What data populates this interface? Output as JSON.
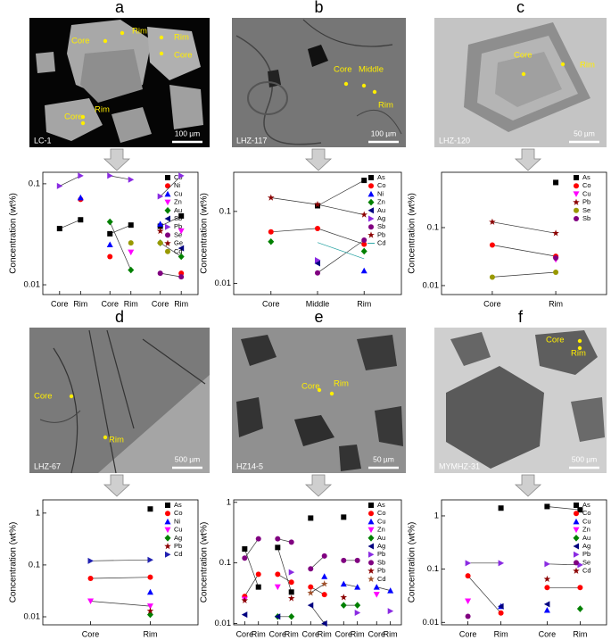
{
  "panels": [
    {
      "letter": "a",
      "sample": "LC-1",
      "scale": "100 µm",
      "labels": [
        "Core",
        "Rim",
        "Rim",
        "Core",
        "Core",
        "Rim"
      ]
    },
    {
      "letter": "b",
      "sample": "LHZ-117",
      "scale": "100 µm",
      "labels": [
        "Core",
        "Middle",
        "Rim"
      ]
    },
    {
      "letter": "c",
      "sample": "LHZ-120",
      "scale": "50 µm",
      "labels": [
        "Core",
        "Rim"
      ]
    },
    {
      "letter": "d",
      "sample": "LHZ-67",
      "scale": "500 µm",
      "labels": [
        "Core",
        "Rim"
      ]
    },
    {
      "letter": "e",
      "sample": "HZ14-5",
      "scale": "50 µm",
      "labels": [
        "Core",
        "Rim"
      ]
    },
    {
      "letter": "f",
      "sample": "MYMHZ-31",
      "scale": "500 µm",
      "labels": [
        "Core",
        "Rim"
      ]
    }
  ],
  "chart_data": [
    {
      "type": "line",
      "ylabel": "Concentration (wt%)",
      "log": true,
      "ylim": [
        0.008,
        0.13
      ],
      "yticks": [
        0.01,
        0.1
      ],
      "categories": [
        "Core",
        "Rim",
        null,
        "Core",
        "Rim",
        null,
        "Core",
        "Rim"
      ],
      "series": [
        {
          "name": "Co",
          "color": "#000000",
          "marker": "square",
          "values": [
            0.036,
            0.044,
            null,
            0.032,
            0.039,
            null,
            0.038,
            0.048
          ]
        },
        {
          "name": "Ni",
          "color": "#ff0000",
          "marker": "circle",
          "values": [
            null,
            0.07,
            null,
            0.019,
            null,
            null,
            null,
            0.013
          ]
        },
        {
          "name": "Cu",
          "color": "#0000ff",
          "marker": "triangle",
          "values": [
            null,
            0.073,
            null,
            0.025,
            null,
            null,
            0.04,
            null
          ]
        },
        {
          "name": "Zn",
          "color": "#ff00ff",
          "marker": "triangle-down",
          "values": [
            null,
            null,
            null,
            null,
            0.021,
            null,
            null,
            0.034
          ]
        },
        {
          "name": "Au",
          "color": "#008000",
          "marker": "diamond",
          "values": [
            null,
            null,
            null,
            0.042,
            0.014,
            null,
            0.026,
            0.019
          ]
        },
        {
          "name": "Sb",
          "color": "#000080",
          "marker": "triangle-left",
          "values": [
            null,
            null,
            null,
            null,
            null,
            null,
            null,
            0.023
          ]
        },
        {
          "name": "Pb",
          "color": "#8a2be2",
          "marker": "triangle-right",
          "values": [
            0.095,
            0.12,
            null,
            0.12,
            0.11,
            null,
            0.075,
            0.12
          ]
        },
        {
          "name": "Se",
          "color": "#800080",
          "marker": "circle",
          "values": [
            null,
            null,
            null,
            null,
            null,
            null,
            0.013,
            0.012
          ]
        },
        {
          "name": "Ge",
          "color": "#8b0000",
          "marker": "star",
          "values": [
            null,
            null,
            null,
            null,
            null,
            null,
            0.034,
            null
          ]
        },
        {
          "name": "Cd",
          "color": "#999900",
          "marker": "circle",
          "values": [
            null,
            null,
            null,
            null,
            0.026,
            null,
            0.026,
            null
          ]
        }
      ]
    },
    {
      "type": "line",
      "ylabel": "Concentration (wt%)",
      "log": true,
      "ylim": [
        0.007,
        0.35
      ],
      "yticks": [
        0.01,
        0.1
      ],
      "categories": [
        "Core",
        "Middle",
        "Rim"
      ],
      "series": [
        {
          "name": "As",
          "color": "#000000",
          "marker": "square",
          "values": [
            null,
            0.12,
            0.27
          ]
        },
        {
          "name": "Co",
          "color": "#ff0000",
          "marker": "circle",
          "values": [
            0.052,
            0.058,
            0.035
          ]
        },
        {
          "name": "Ni",
          "color": "#0000ff",
          "marker": "triangle",
          "values": [
            null,
            null,
            0.015
          ]
        },
        {
          "name": "Zn",
          "color": "#008000",
          "marker": "diamond",
          "values": [
            0.038,
            null,
            0.028
          ]
        },
        {
          "name": "Au",
          "color": "#000080",
          "marker": "triangle-left",
          "values": [
            null,
            0.019,
            null
          ]
        },
        {
          "name": "Ag",
          "color": "#8a2be2",
          "marker": "triangle-right",
          "values": [
            null,
            0.021,
            null
          ]
        },
        {
          "name": "Sb",
          "color": "#800080",
          "marker": "circle",
          "values": [
            null,
            0.014,
            0.04
          ]
        },
        {
          "name": "Pb",
          "color": "#8b0000",
          "marker": "star",
          "values": [
            0.155,
            0.125,
            0.09
          ]
        },
        {
          "name": "Cd",
          "color": "#20a0a0",
          "marker": "none",
          "values": [
            null,
            0.037,
            0.022
          ]
        }
      ]
    },
    {
      "type": "line",
      "ylabel": "Concentration (wt%)",
      "log": true,
      "ylim": [
        0.007,
        0.9
      ],
      "yticks": [
        0.01,
        0.1
      ],
      "categories": [
        "Core",
        "Rim"
      ],
      "series": [
        {
          "name": "As",
          "color": "#000000",
          "marker": "square",
          "values": [
            null,
            0.6
          ]
        },
        {
          "name": "Co",
          "color": "#ff0000",
          "marker": "circle",
          "values": [
            0.05,
            0.032
          ]
        },
        {
          "name": "Cu",
          "color": "#ff00ff",
          "marker": "triangle-down",
          "values": [
            null,
            0.028
          ]
        },
        {
          "name": "Pb",
          "color": "#8b0000",
          "marker": "star",
          "values": [
            0.125,
            0.08
          ]
        },
        {
          "name": "Se",
          "color": "#999900",
          "marker": "circle",
          "values": [
            0.014,
            0.017
          ]
        },
        {
          "name": "Sb",
          "color": "#800080",
          "marker": "circle",
          "values": [
            null,
            0.03
          ]
        }
      ]
    },
    {
      "type": "line",
      "ylabel": "Concentration (wt%)",
      "log": true,
      "ylim": [
        0.007,
        1.8
      ],
      "yticks": [
        0.01,
        0.1,
        1
      ],
      "categories": [
        "Core",
        "Rim"
      ],
      "series": [
        {
          "name": "As",
          "color": "#000000",
          "marker": "square",
          "values": [
            null,
            1.2
          ]
        },
        {
          "name": "Co",
          "color": "#ff0000",
          "marker": "circle",
          "values": [
            0.055,
            0.058
          ]
        },
        {
          "name": "Ni",
          "color": "#0000ff",
          "marker": "triangle",
          "values": [
            null,
            0.03
          ]
        },
        {
          "name": "Cu",
          "color": "#ff00ff",
          "marker": "triangle-down",
          "values": [
            0.02,
            0.016
          ]
        },
        {
          "name": "Ag",
          "color": "#008000",
          "marker": "diamond",
          "values": [
            null,
            0.011
          ]
        },
        {
          "name": "Pb",
          "color": "#8b0000",
          "marker": "star",
          "values": [
            null,
            0.013
          ]
        },
        {
          "name": "Cd",
          "color": "#2020b0",
          "marker": "triangle-right",
          "values": [
            0.12,
            0.125
          ]
        }
      ]
    },
    {
      "type": "line",
      "ylabel": "Concentration (wt%)",
      "log": true,
      "ylim": [
        0.0095,
        1.1
      ],
      "yticks": [
        0.01,
        0.1,
        1
      ],
      "categories": [
        "Core",
        "Rim",
        null,
        "Core",
        "Rim",
        null,
        "Core",
        "Rim",
        null,
        "Core",
        "Rim",
        null,
        "Core",
        "Rim"
      ],
      "series": [
        {
          "name": "As",
          "color": "#000000",
          "marker": "square",
          "values": [
            0.17,
            0.04,
            null,
            0.18,
            0.033,
            null,
            0.55,
            null,
            null,
            0.57,
            null,
            null,
            null,
            null
          ]
        },
        {
          "name": "Co",
          "color": "#ff0000",
          "marker": "circle",
          "values": [
            0.028,
            0.065,
            null,
            0.065,
            0.048,
            null,
            0.04,
            0.03,
            null,
            null,
            null,
            null,
            null,
            null
          ]
        },
        {
          "name": "Cu",
          "color": "#0000ff",
          "marker": "triangle",
          "values": [
            null,
            null,
            null,
            null,
            null,
            null,
            null,
            0.06,
            null,
            0.045,
            0.04,
            null,
            0.04,
            0.035
          ]
        },
        {
          "name": "Zn",
          "color": "#ff00ff",
          "marker": "triangle-down",
          "values": [
            0.025,
            null,
            null,
            0.04,
            null,
            null,
            null,
            null,
            null,
            null,
            null,
            null,
            0.03,
            null
          ]
        },
        {
          "name": "Au",
          "color": "#008000",
          "marker": "diamond",
          "values": [
            null,
            null,
            null,
            0.013,
            0.013,
            null,
            null,
            null,
            null,
            0.02,
            0.02,
            null,
            null,
            null
          ]
        },
        {
          "name": "Ag",
          "color": "#000080",
          "marker": "triangle-left",
          "values": [
            0.014,
            null,
            null,
            0.013,
            null,
            null,
            0.02,
            0.01,
            null,
            null,
            null,
            null,
            null,
            null
          ]
        },
        {
          "name": "Pb",
          "color": "#8a2be2",
          "marker": "triangle-right",
          "values": [
            null,
            null,
            null,
            null,
            0.07,
            null,
            null,
            null,
            null,
            null,
            0.015,
            null,
            null,
            0.016
          ]
        },
        {
          "name": "Sb",
          "color": "#800080",
          "marker": "circle",
          "values": [
            0.12,
            0.25,
            null,
            0.25,
            0.22,
            null,
            0.08,
            0.13,
            null,
            0.11,
            0.11,
            null,
            null,
            null
          ]
        },
        {
          "name": "Pb",
          "color": "#8b0000",
          "marker": "star",
          "values": [
            0.024,
            null,
            null,
            null,
            0.026,
            null,
            null,
            null,
            null,
            0.027,
            null,
            null,
            null,
            null
          ]
        },
        {
          "name": "Cd",
          "color": "#a0522d",
          "marker": "star",
          "values": [
            null,
            null,
            null,
            null,
            null,
            null,
            0.032,
            0.045,
            null,
            null,
            null,
            null,
            null,
            null
          ]
        }
      ]
    },
    {
      "type": "line",
      "ylabel": "Concentration (wt%)",
      "log": true,
      "ylim": [
        0.009,
        2
      ],
      "yticks": [
        0.01,
        0.1,
        1
      ],
      "categories": [
        "Core",
        "Rim",
        null,
        "Core",
        "Rim"
      ],
      "series": [
        {
          "name": "As",
          "color": "#000000",
          "marker": "square",
          "values": [
            null,
            1.4,
            null,
            1.5,
            1.3
          ]
        },
        {
          "name": "Co",
          "color": "#ff0000",
          "marker": "circle",
          "values": [
            0.075,
            0.015,
            null,
            0.045,
            0.045
          ]
        },
        {
          "name": "Cu",
          "color": "#0000ff",
          "marker": "triangle",
          "values": [
            null,
            0.02,
            null,
            0.017,
            null
          ]
        },
        {
          "name": "Zn",
          "color": "#ff00ff",
          "marker": "triangle-down",
          "values": [
            0.025,
            null,
            null,
            null,
            null
          ]
        },
        {
          "name": "Au",
          "color": "#008000",
          "marker": "diamond",
          "values": [
            null,
            null,
            null,
            null,
            0.018
          ]
        },
        {
          "name": "Ag",
          "color": "#000080",
          "marker": "triangle-left",
          "values": [
            null,
            0.02,
            null,
            0.022,
            null
          ]
        },
        {
          "name": "Pb",
          "color": "#8a2be2",
          "marker": "triangle-right",
          "values": [
            0.13,
            0.13,
            null,
            0.125,
            0.12
          ]
        },
        {
          "name": "Se",
          "color": "#800080",
          "marker": "circle",
          "values": [
            0.013,
            null,
            null,
            null,
            null
          ]
        },
        {
          "name": "Cd",
          "color": "#8b0000",
          "marker": "star",
          "values": [
            null,
            null,
            null,
            0.065,
            null
          ]
        }
      ]
    }
  ]
}
